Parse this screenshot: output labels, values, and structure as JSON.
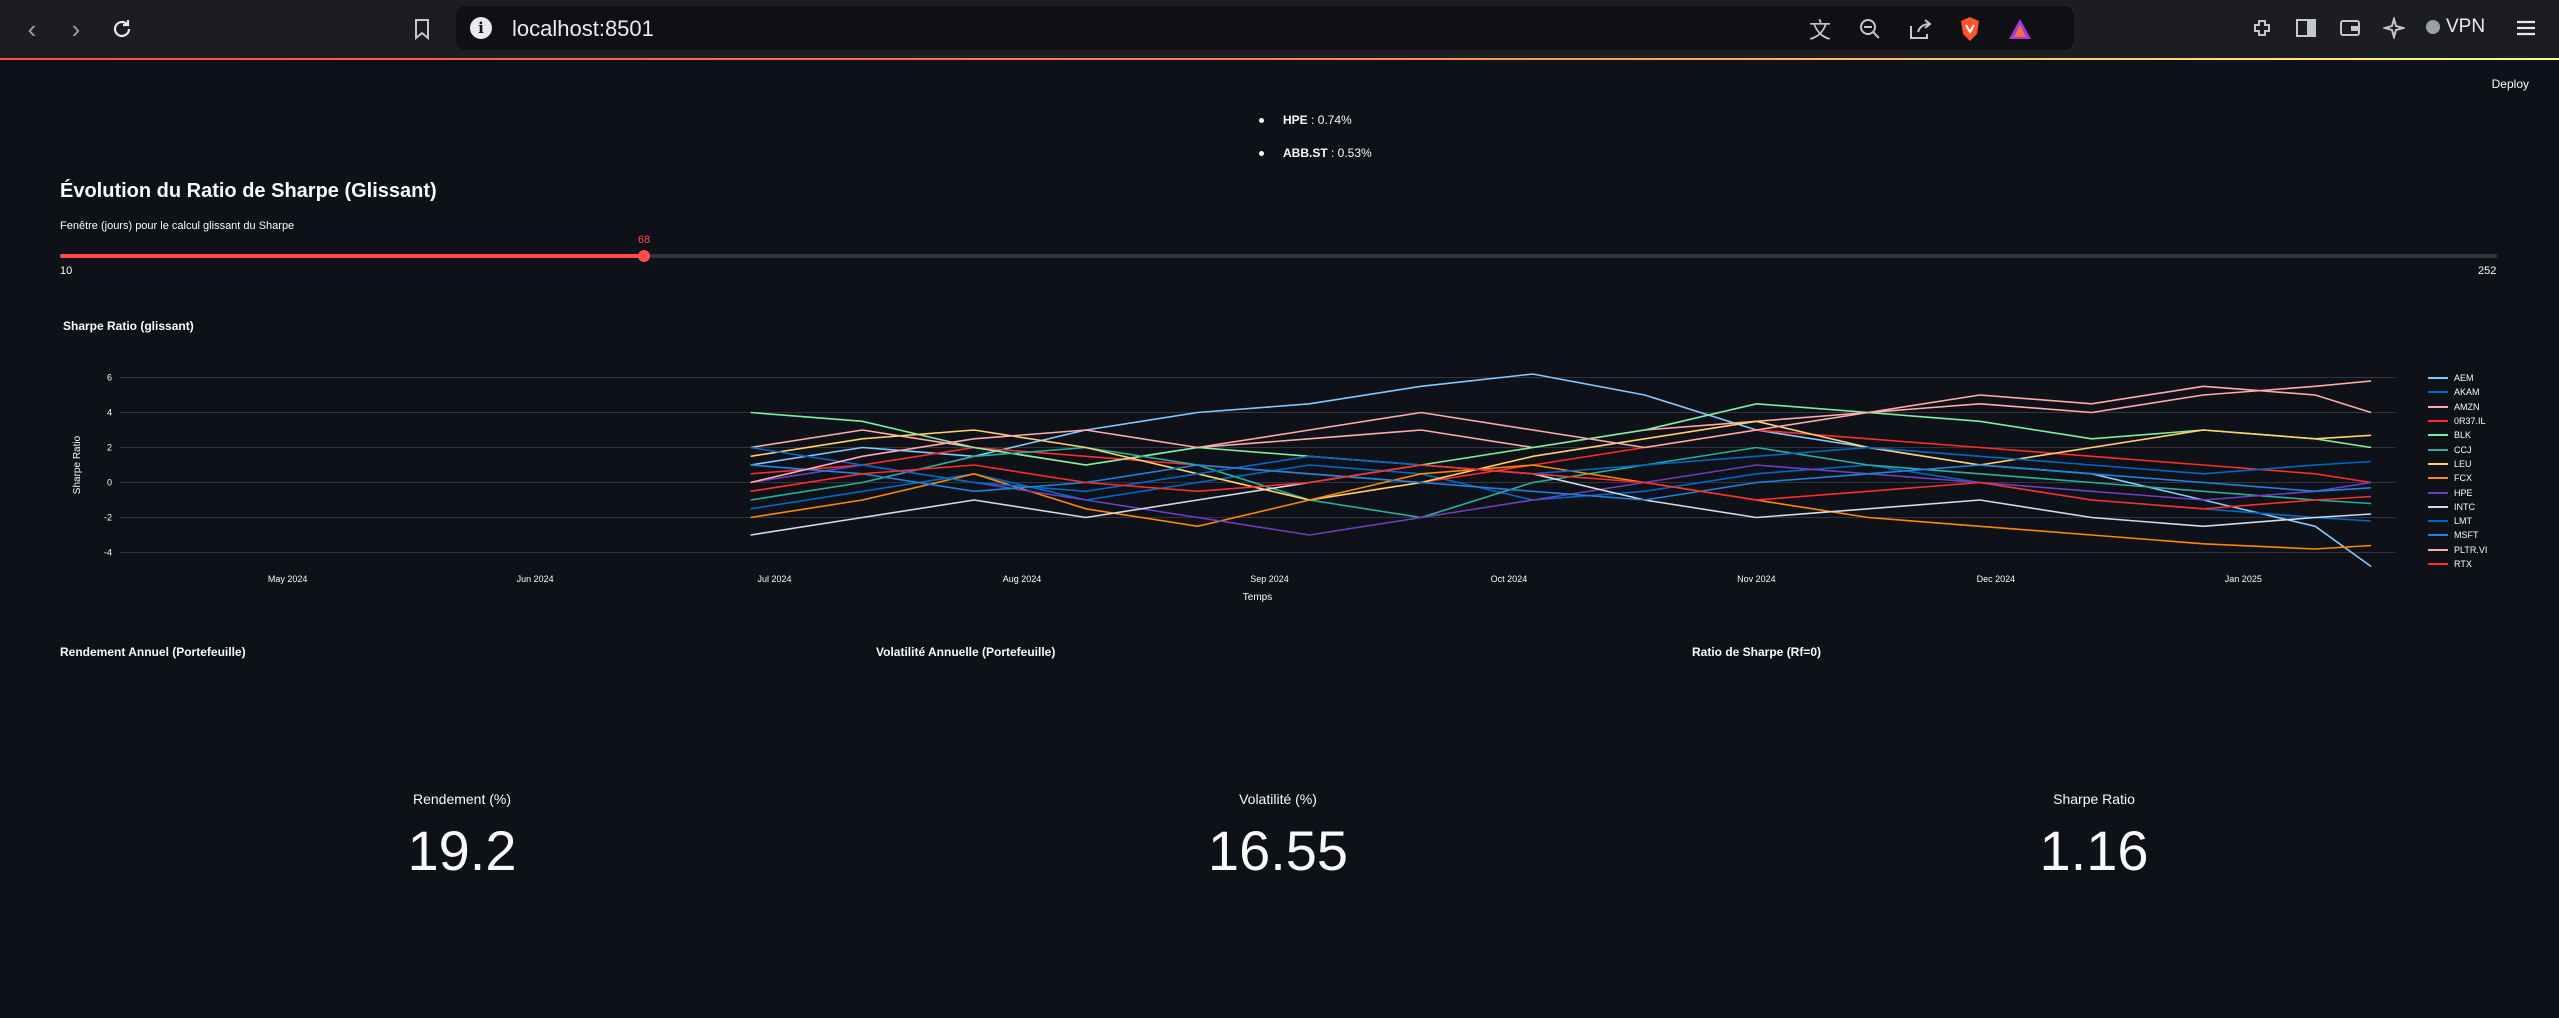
{
  "browser": {
    "url": "localhost:8501",
    "vpn_label": "VPN"
  },
  "app": {
    "deploy_label": "Deploy",
    "bullets": [
      {
        "ticker": "HPE",
        "value": " : 0.74%"
      },
      {
        "ticker": "ABB.ST",
        "value": " : 0.53%"
      }
    ],
    "section_title": "Évolution du Ratio de Sharpe (Glissant)",
    "slider": {
      "label": "Fenêtre (jours) pour le calcul glissant du Sharpe",
      "min": 10,
      "max": 252,
      "value": 68,
      "min_label": "10",
      "max_label": "252",
      "value_label": "68"
    },
    "chart_title": "Sharpe Ratio (glissant)",
    "metrics_headers": {
      "return": "Rendement Annuel (Portefeuille)",
      "volatility": "Volatilité Annuelle (Portefeuille)",
      "sharpe": "Ratio de Sharpe (Rf=0)"
    },
    "metrics": {
      "return_label": "Rendement (%)",
      "return_value": "19.2",
      "volatility_label": "Volatilité (%)",
      "volatility_value": "16.55",
      "sharpe_label": "Sharpe Ratio",
      "sharpe_value": "1.16"
    }
  },
  "chart_data": {
    "type": "line",
    "title": "Sharpe Ratio (glissant)",
    "xlabel": "Temps",
    "ylabel": "Sharpe Ratio",
    "x_ticks": [
      "May 2024",
      "Jun 2024",
      "Jul 2024",
      "Aug 2024",
      "Sep 2024",
      "Oct 2024",
      "Nov 2024",
      "Dec 2024",
      "Jan 2025"
    ],
    "y_ticks": [
      -4,
      -2,
      0,
      2,
      4,
      6
    ],
    "ylim": [
      -5,
      7
    ],
    "xlim": [
      "2024-04-10",
      "2025-01-20"
    ],
    "grid": true,
    "legend_position": "right",
    "x": [
      "2024-06-28",
      "2024-07-12",
      "2024-07-26",
      "2024-08-09",
      "2024-08-23",
      "2024-09-06",
      "2024-09-20",
      "2024-10-04",
      "2024-10-18",
      "2024-11-01",
      "2024-11-15",
      "2024-11-29",
      "2024-12-13",
      "2024-12-27",
      "2025-01-10",
      "2025-01-17"
    ],
    "series": [
      {
        "name": "AEM",
        "color": "#83c9ff",
        "values": [
          1.0,
          2.0,
          1.5,
          3.0,
          4.0,
          4.5,
          5.5,
          6.2,
          5.0,
          3.0,
          2.0,
          1.0,
          0.5,
          -1.0,
          -2.5,
          -4.8
        ]
      },
      {
        "name": "AKAM",
        "color": "#0068c9",
        "values": [
          -1.5,
          -0.5,
          0.5,
          -1.0,
          0.0,
          1.0,
          0.5,
          -1.0,
          -0.5,
          0.5,
          1.0,
          0.0,
          -1.0,
          -1.5,
          -2.0,
          -2.2
        ]
      },
      {
        "name": "AMZN",
        "color": "#ffabab",
        "values": [
          2.0,
          3.0,
          2.0,
          1.0,
          2.0,
          2.5,
          3.0,
          2.0,
          3.0,
          3.5,
          4.0,
          4.5,
          4.0,
          5.0,
          5.5,
          5.8
        ]
      },
      {
        "name": "0R37.IL",
        "color": "#ff2b2b",
        "values": [
          0.5,
          1.0,
          2.0,
          1.5,
          1.0,
          0.5,
          0.0,
          1.0,
          2.0,
          3.0,
          2.5,
          2.0,
          1.5,
          1.0,
          0.5,
          0.0
        ]
      },
      {
        "name": "BLK",
        "color": "#7defa1",
        "values": [
          4.0,
          3.5,
          2.0,
          1.0,
          2.0,
          1.5,
          1.0,
          2.0,
          3.0,
          4.5,
          4.0,
          3.5,
          2.5,
          3.0,
          2.5,
          2.0
        ]
      },
      {
        "name": "CCJ",
        "color": "#29b09d",
        "values": [
          -1.0,
          0.0,
          1.5,
          2.0,
          1.0,
          -1.0,
          -2.0,
          0.0,
          1.0,
          2.0,
          1.0,
          0.5,
          0.0,
          -0.5,
          -1.0,
          -1.2
        ]
      },
      {
        "name": "LEU",
        "color": "#ffd16a",
        "values": [
          1.5,
          2.5,
          3.0,
          2.0,
          0.5,
          -1.0,
          0.0,
          1.5,
          2.5,
          3.5,
          2.0,
          1.0,
          2.0,
          3.0,
          2.5,
          2.7
        ]
      },
      {
        "name": "FCX",
        "color": "#ff8700",
        "values": [
          -2.0,
          -1.0,
          0.5,
          -1.5,
          -2.5,
          -1.0,
          0.5,
          1.0,
          0.0,
          -1.0,
          -2.0,
          -2.5,
          -3.0,
          -3.5,
          -3.8,
          -3.6
        ]
      },
      {
        "name": "HPE",
        "color": "#6d3fc0",
        "values": [
          0.0,
          1.0,
          0.0,
          -1.0,
          -2.0,
          -3.0,
          -2.0,
          -1.0,
          0.0,
          1.0,
          0.5,
          0.0,
          -0.5,
          -1.0,
          -0.5,
          0.0
        ]
      },
      {
        "name": "INTC",
        "color": "#d5dae5",
        "values": [
          -3.0,
          -2.0,
          -1.0,
          -2.0,
          -1.0,
          0.0,
          1.0,
          0.5,
          -1.0,
          -2.0,
          -1.5,
          -1.0,
          -2.0,
          -2.5,
          -2.0,
          -1.8
        ]
      },
      {
        "name": "LMT",
        "color": "#0068c9",
        "values": [
          2.0,
          1.0,
          0.0,
          -0.5,
          0.5,
          1.5,
          1.0,
          0.5,
          1.0,
          1.5,
          2.0,
          1.5,
          1.0,
          0.5,
          1.0,
          1.2
        ]
      },
      {
        "name": "MSFT",
        "color": "#1c83e1",
        "values": [
          1.0,
          0.5,
          -0.5,
          0.0,
          1.0,
          0.5,
          0.0,
          -0.5,
          -1.0,
          0.0,
          0.5,
          1.0,
          0.5,
          0.0,
          -0.5,
          -0.3
        ]
      },
      {
        "name": "PLTR.VI",
        "color": "#ffabab",
        "values": [
          0.0,
          1.5,
          2.5,
          3.0,
          2.0,
          3.0,
          4.0,
          3.0,
          2.0,
          3.0,
          4.0,
          5.0,
          4.5,
          5.5,
          5.0,
          4.0
        ]
      },
      {
        "name": "RTX",
        "color": "#ff2b2b",
        "values": [
          -0.5,
          0.5,
          1.0,
          0.0,
          -0.5,
          0.0,
          1.0,
          0.5,
          0.0,
          -1.0,
          -0.5,
          0.0,
          -1.0,
          -1.5,
          -1.0,
          -0.8
        ]
      }
    ]
  }
}
